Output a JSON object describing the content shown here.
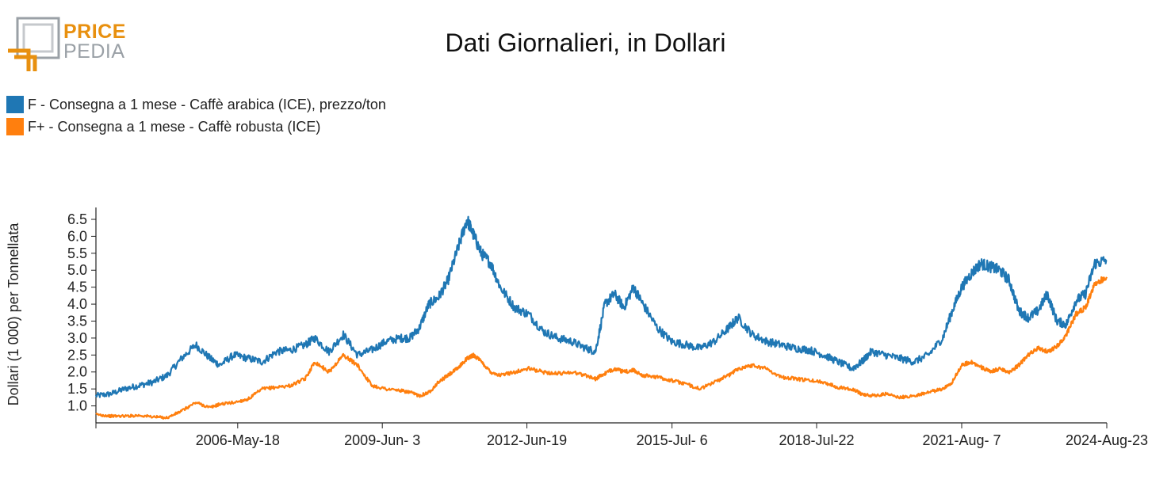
{
  "logo": {
    "line1": "PRICE",
    "line2": "PEDIA"
  },
  "chart_data": {
    "type": "line",
    "title": "Dati Giornalieri, in Dollari",
    "ylabel": "Dollari (1 000) per Tonnellata",
    "xlabel": "",
    "ylim": [
      0.5,
      6.85
    ],
    "yticks": [
      1.0,
      1.5,
      2.0,
      2.5,
      3.0,
      3.5,
      4.0,
      4.5,
      5.0,
      5.5,
      6.0,
      6.5
    ],
    "ytick_labels": [
      "1.0",
      "1.5",
      "2.0",
      "2.5",
      "3.0",
      "3.5",
      "4.0",
      "4.5",
      "5.0",
      "5.5",
      "6.0",
      "6.5"
    ],
    "xlim": [
      2003.4,
      2024.65
    ],
    "xticks": [
      2006.38,
      2009.42,
      2012.46,
      2015.51,
      2018.55,
      2021.6,
      2024.65
    ],
    "xtick_labels": [
      "2006-May-18",
      "2009-Jun- 3",
      "2012-Jun-19",
      "2015-Jul- 6",
      "2018-Jul-22",
      "2021-Aug- 7",
      "2024-Aug-23"
    ],
    "grid": false,
    "legend_position": "top-left",
    "series": [
      {
        "name": "F - Consegna a 1 mese - Caffè arabica (ICE), prezzo/ton",
        "color": "#1f77b4",
        "x": [
          2003.4,
          2003.7,
          2004.0,
          2004.3,
          2004.6,
          2004.9,
          2005.2,
          2005.5,
          2005.8,
          2006.0,
          2006.3,
          2006.6,
          2006.9,
          2007.2,
          2007.5,
          2007.8,
          2008.0,
          2008.3,
          2008.6,
          2008.9,
          2009.2,
          2009.5,
          2009.8,
          2010.0,
          2010.2,
          2010.4,
          2010.6,
          2010.8,
          2011.0,
          2011.2,
          2011.35,
          2011.5,
          2011.7,
          2011.9,
          2012.2,
          2012.5,
          2012.8,
          2013.1,
          2013.4,
          2013.7,
          2013.9,
          2014.1,
          2014.3,
          2014.5,
          2014.7,
          2014.9,
          2015.2,
          2015.5,
          2015.8,
          2016.1,
          2016.4,
          2016.7,
          2016.9,
          2017.2,
          2017.5,
          2017.8,
          2018.1,
          2018.4,
          2018.7,
          2019.0,
          2019.3,
          2019.5,
          2019.7,
          2020.0,
          2020.3,
          2020.6,
          2020.9,
          2021.2,
          2021.4,
          2021.6,
          2021.8,
          2022.0,
          2022.2,
          2022.4,
          2022.6,
          2022.8,
          2023.0,
          2023.2,
          2023.4,
          2023.6,
          2023.8,
          2024.0,
          2024.2,
          2024.4,
          2024.65
        ],
        "y": [
          1.3,
          1.35,
          1.5,
          1.6,
          1.7,
          1.9,
          2.4,
          2.8,
          2.4,
          2.2,
          2.5,
          2.4,
          2.3,
          2.6,
          2.65,
          2.8,
          3.0,
          2.6,
          3.1,
          2.5,
          2.65,
          2.9,
          3.0,
          3.0,
          3.3,
          4.0,
          4.2,
          4.7,
          5.6,
          6.5,
          6.0,
          5.5,
          5.2,
          4.5,
          3.9,
          3.7,
          3.2,
          3.0,
          2.9,
          2.7,
          2.6,
          4.0,
          4.3,
          3.9,
          4.5,
          4.0,
          3.3,
          2.9,
          2.8,
          2.7,
          2.9,
          3.3,
          3.6,
          3.1,
          2.9,
          2.8,
          2.7,
          2.65,
          2.5,
          2.3,
          2.1,
          2.3,
          2.6,
          2.5,
          2.4,
          2.3,
          2.5,
          3.0,
          3.8,
          4.5,
          4.9,
          5.2,
          5.1,
          5.0,
          4.7,
          3.8,
          3.6,
          3.8,
          4.3,
          3.5,
          3.4,
          4.1,
          4.3,
          5.2,
          5.3
        ]
      },
      {
        "name": "F+ - Consegna a 1 mese - Caffè robusta (ICE)",
        "color": "#ff7f0e",
        "x": [
          2003.4,
          2003.7,
          2004.0,
          2004.3,
          2004.6,
          2004.9,
          2005.2,
          2005.5,
          2005.8,
          2006.0,
          2006.3,
          2006.6,
          2006.9,
          2007.2,
          2007.5,
          2007.8,
          2008.0,
          2008.3,
          2008.6,
          2008.9,
          2009.2,
          2009.5,
          2009.8,
          2010.0,
          2010.2,
          2010.4,
          2010.6,
          2010.8,
          2011.0,
          2011.2,
          2011.35,
          2011.5,
          2011.7,
          2011.9,
          2012.2,
          2012.5,
          2012.8,
          2013.1,
          2013.4,
          2013.7,
          2013.9,
          2014.1,
          2014.3,
          2014.5,
          2014.7,
          2014.9,
          2015.2,
          2015.5,
          2015.8,
          2016.1,
          2016.4,
          2016.7,
          2016.9,
          2017.2,
          2017.5,
          2017.8,
          2018.1,
          2018.4,
          2018.7,
          2019.0,
          2019.3,
          2019.5,
          2019.7,
          2020.0,
          2020.3,
          2020.6,
          2020.9,
          2021.2,
          2021.4,
          2021.6,
          2021.8,
          2022.0,
          2022.2,
          2022.4,
          2022.6,
          2022.8,
          2023.0,
          2023.2,
          2023.4,
          2023.6,
          2023.8,
          2024.0,
          2024.2,
          2024.4,
          2024.65
        ],
        "y": [
          0.75,
          0.7,
          0.7,
          0.72,
          0.68,
          0.65,
          0.85,
          1.1,
          0.95,
          1.05,
          1.1,
          1.2,
          1.5,
          1.55,
          1.6,
          1.8,
          2.3,
          2.0,
          2.5,
          2.2,
          1.6,
          1.5,
          1.45,
          1.4,
          1.3,
          1.4,
          1.7,
          1.9,
          2.1,
          2.4,
          2.5,
          2.3,
          2.0,
          1.9,
          2.0,
          2.1,
          2.0,
          1.95,
          2.0,
          1.9,
          1.8,
          1.95,
          2.1,
          2.0,
          2.05,
          1.9,
          1.85,
          1.75,
          1.65,
          1.5,
          1.7,
          1.9,
          2.1,
          2.2,
          2.1,
          1.85,
          1.8,
          1.75,
          1.7,
          1.55,
          1.5,
          1.35,
          1.3,
          1.35,
          1.25,
          1.3,
          1.4,
          1.5,
          1.7,
          2.2,
          2.3,
          2.15,
          2.0,
          2.1,
          2.0,
          2.2,
          2.5,
          2.7,
          2.6,
          2.75,
          3.1,
          3.7,
          3.9,
          4.6,
          4.8
        ]
      }
    ]
  }
}
